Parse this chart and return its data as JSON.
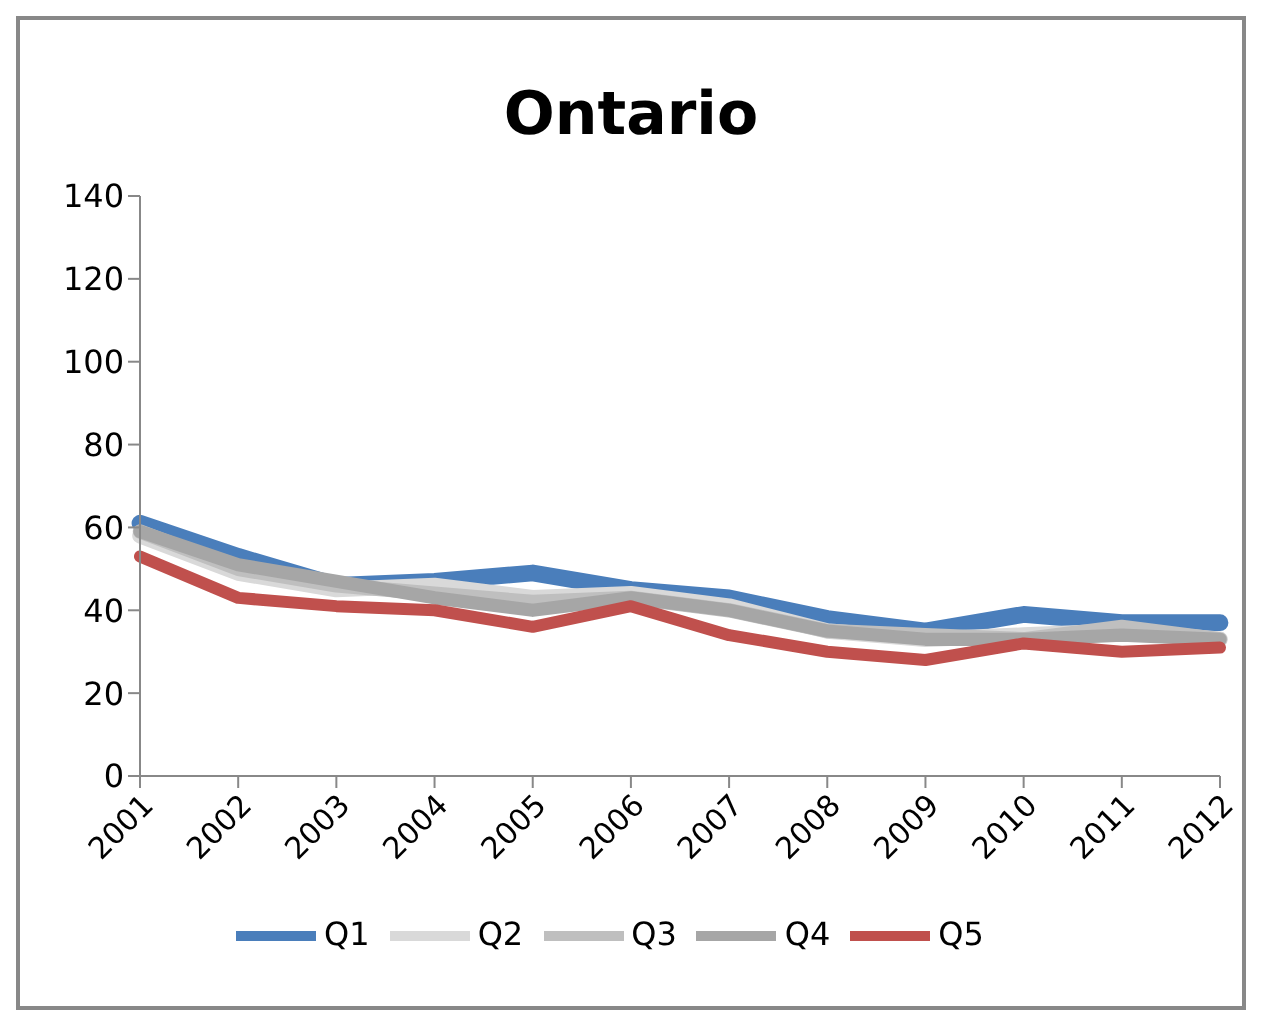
{
  "chart_data": {
    "type": "line",
    "title": "Ontario",
    "categories": [
      "2001",
      "2002",
      "2003",
      "2004",
      "2005",
      "2006",
      "2007",
      "2008",
      "2009",
      "2010",
      "2011",
      "2012"
    ],
    "series": [
      {
        "name": "Q1",
        "color": "#4a7ebb",
        "values": [
          61,
          53,
          46,
          47,
          49,
          45,
          43,
          38,
          35,
          39,
          37,
          37
        ]
      },
      {
        "name": "Q2",
        "color": "#d9d9d9",
        "values": [
          58,
          49,
          45,
          46,
          43,
          44,
          41,
          35,
          33,
          34,
          35,
          33
        ]
      },
      {
        "name": "Q3",
        "color": "#bfbfbf",
        "values": [
          59,
          50,
          46,
          44,
          42,
          43,
          40,
          35,
          34,
          33,
          36,
          33
        ]
      },
      {
        "name": "Q4",
        "color": "#a6a6a6",
        "values": [
          59,
          51,
          47,
          43,
          40,
          43,
          40,
          35,
          33,
          33,
          34,
          33
        ]
      },
      {
        "name": "Q5",
        "color": "#c0504d",
        "values": [
          53,
          43,
          41,
          40,
          36,
          41,
          34,
          30,
          28,
          32,
          30,
          31
        ]
      }
    ],
    "ylim": [
      0,
      140
    ],
    "yticks": [
      0,
      20,
      40,
      60,
      80,
      100,
      120,
      140
    ],
    "grid": false,
    "legend": "bottom",
    "marker": "none",
    "line_style": "solid"
  }
}
